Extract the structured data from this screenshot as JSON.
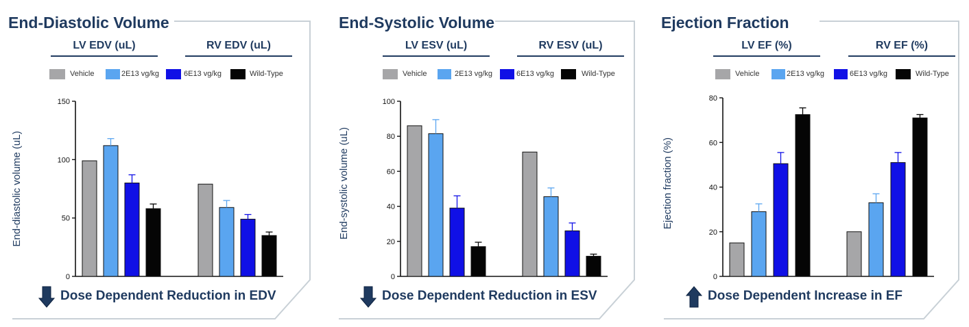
{
  "colors": {
    "navy": "#1f3a5f",
    "frame": "#c8d0d6",
    "vehicle": "#a6a6a8",
    "dose_low": "#5aa5f0",
    "dose_high": "#1010e6",
    "wild_type": "#050505",
    "error_low": "#5aa5f0",
    "error_high": "#1010e6"
  },
  "legend": [
    {
      "label": "Vehicle",
      "color": "#a6a6a8",
      "icon": "legend-swatch-vehicle"
    },
    {
      "label": "2E13 vg/kg",
      "color": "#5aa5f0",
      "icon": "legend-swatch-2e13"
    },
    {
      "label": "6E13 vg/kg",
      "color": "#1010e6",
      "icon": "legend-swatch-6e13"
    },
    {
      "label": "Wild-Type",
      "color": "#050505",
      "icon": "legend-swatch-wild-type"
    }
  ],
  "panels": [
    {
      "title": "End-Diastolic Volume",
      "groups": [
        "LV EDV (uL)",
        "RV EDV (uL)"
      ],
      "footer": "Dose Dependent Reduction in EDV",
      "footer_arrow": "down-arrow-icon"
    },
    {
      "title": "End-Systolic Volume",
      "groups": [
        "LV ESV (uL)",
        "RV ESV (uL)"
      ],
      "footer": "Dose Dependent Reduction in ESV",
      "footer_arrow": "down-arrow-icon"
    },
    {
      "title": "Ejection Fraction",
      "groups": [
        "LV EF (%)",
        "RV EF (%)"
      ],
      "footer": "Dose Dependent Increase in EF",
      "footer_arrow": "up-arrow-icon"
    }
  ],
  "chart_data": [
    {
      "type": "bar",
      "title": "End-Diastolic Volume",
      "categories": [
        "LV EDV (uL)",
        "RV EDV (uL)"
      ],
      "ylabel": "End-diastolic volume (uL)",
      "ylim": [
        0,
        150
      ],
      "yticks": [
        0,
        50,
        100,
        150
      ],
      "grid": false,
      "legend_position": "top",
      "series": [
        {
          "name": "Vehicle",
          "values": [
            99,
            79
          ],
          "errors": [
            0,
            0
          ]
        },
        {
          "name": "2E13 vg/kg",
          "values": [
            112,
            59
          ],
          "errors": [
            6,
            6
          ]
        },
        {
          "name": "6E13 vg/kg",
          "values": [
            80,
            49
          ],
          "errors": [
            7,
            4
          ]
        },
        {
          "name": "Wild-Type",
          "values": [
            58,
            35
          ],
          "errors": [
            4,
            3
          ]
        }
      ]
    },
    {
      "type": "bar",
      "title": "End-Systolic Volume",
      "categories": [
        "LV ESV (uL)",
        "RV ESV (uL)"
      ],
      "ylabel": "End-systolic volume (uL)",
      "ylim": [
        0,
        100
      ],
      "yticks": [
        0,
        20,
        40,
        60,
        80,
        100
      ],
      "grid": false,
      "legend_position": "top",
      "series": [
        {
          "name": "Vehicle",
          "values": [
            86,
            71
          ],
          "errors": [
            0,
            0
          ]
        },
        {
          "name": "2E13 vg/kg",
          "values": [
            81.5,
            45.5
          ],
          "errors": [
            8,
            5
          ]
        },
        {
          "name": "6E13 vg/kg",
          "values": [
            39,
            26
          ],
          "errors": [
            7,
            4.5
          ]
        },
        {
          "name": "Wild-Type",
          "values": [
            17,
            11.5
          ],
          "errors": [
            2.5,
            1.2
          ]
        }
      ]
    },
    {
      "type": "bar",
      "title": "Ejection Fraction",
      "categories": [
        "LV EF (%)",
        "RV EF (%)"
      ],
      "ylabel": "Ejection fraction (%)",
      "ylim": [
        0,
        80
      ],
      "yticks": [
        0,
        20,
        40,
        60,
        80
      ],
      "grid": false,
      "legend_position": "top",
      "series": [
        {
          "name": "Vehicle",
          "values": [
            15,
            20
          ],
          "errors": [
            0,
            0
          ]
        },
        {
          "name": "2E13 vg/kg",
          "values": [
            29,
            33
          ],
          "errors": [
            3.5,
            4
          ]
        },
        {
          "name": "6E13 vg/kg",
          "values": [
            50.5,
            51
          ],
          "errors": [
            5,
            4.5
          ]
        },
        {
          "name": "Wild-Type",
          "values": [
            72.5,
            71
          ],
          "errors": [
            3,
            1.5
          ]
        }
      ]
    }
  ]
}
